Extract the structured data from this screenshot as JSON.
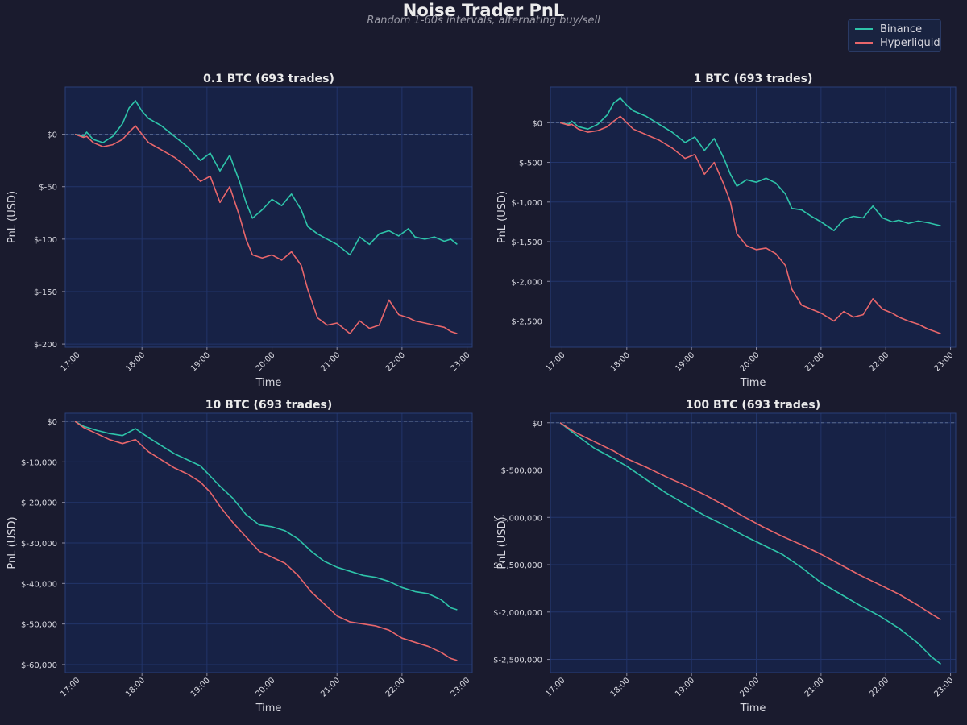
{
  "figure": {
    "title": "Noise Trader PnL",
    "subtitle": "Random 1-60s intervals, alternating buy/sell"
  },
  "colors": {
    "binance": "#2ec4a9",
    "hyperliquid": "#e8666b",
    "plot_bg": "#172246",
    "page_bg": "#1a1b2e",
    "grid": "#22346a",
    "zero_line": "#5a6a8e"
  },
  "legend": {
    "items": [
      {
        "name": "Binance",
        "color": "#2ec4a9"
      },
      {
        "name": "Hyperliquid",
        "color": "#e8666b"
      }
    ]
  },
  "chart_data": [
    {
      "type": "line",
      "title": "0.1 BTC  (693 trades)",
      "xlabel": "Time",
      "ylabel": "PnL (USD)",
      "xlim": [
        16.82,
        23.08
      ],
      "ylim": [
        -203,
        45
      ],
      "xticks": [
        17,
        18,
        19,
        20,
        21,
        22,
        23
      ],
      "xtick_labels": [
        "17:00",
        "18:00",
        "19:00",
        "20:00",
        "21:00",
        "22:00",
        "23:00"
      ],
      "yticks": [
        0,
        -50,
        -100,
        -150,
        -200
      ],
      "ytick_labels": [
        "$0",
        "$-50",
        "$-100",
        "$-150",
        "$-200"
      ],
      "zero_line": true,
      "series": [
        {
          "name": "Binance",
          "x": [
            16.97,
            17.1,
            17.15,
            17.25,
            17.4,
            17.55,
            17.7,
            17.8,
            17.9,
            18.0,
            18.1,
            18.3,
            18.5,
            18.7,
            18.9,
            19.05,
            19.2,
            19.35,
            19.5,
            19.6,
            19.7,
            19.85,
            20.0,
            20.15,
            20.3,
            20.45,
            20.55,
            20.7,
            20.85,
            21.0,
            21.2,
            21.35,
            21.5,
            21.65,
            21.8,
            21.95,
            22.1,
            22.2,
            22.35,
            22.5,
            22.65,
            22.75,
            22.85
          ],
          "y": [
            0,
            -2,
            2,
            -5,
            -8,
            -2,
            10,
            25,
            32,
            22,
            15,
            8,
            -2,
            -12,
            -25,
            -18,
            -35,
            -20,
            -45,
            -65,
            -80,
            -72,
            -62,
            -68,
            -57,
            -72,
            -88,
            -95,
            -100,
            -105,
            -115,
            -98,
            -105,
            -95,
            -92,
            -97,
            -90,
            -98,
            -100,
            -98,
            -102,
            -100,
            -105
          ]
        },
        {
          "name": "Hyperliquid",
          "x": [
            16.97,
            17.1,
            17.15,
            17.25,
            17.4,
            17.55,
            17.7,
            17.8,
            17.9,
            18.0,
            18.1,
            18.3,
            18.5,
            18.7,
            18.9,
            19.05,
            19.2,
            19.35,
            19.5,
            19.6,
            19.7,
            19.85,
            20.0,
            20.15,
            20.3,
            20.45,
            20.55,
            20.7,
            20.85,
            21.0,
            21.2,
            21.35,
            21.5,
            21.65,
            21.8,
            21.95,
            22.1,
            22.2,
            22.35,
            22.5,
            22.65,
            22.75,
            22.85
          ],
          "y": [
            0,
            -3,
            -2,
            -8,
            -12,
            -10,
            -5,
            2,
            8,
            0,
            -8,
            -15,
            -22,
            -32,
            -45,
            -40,
            -65,
            -50,
            -78,
            -100,
            -115,
            -118,
            -115,
            -120,
            -112,
            -125,
            -148,
            -175,
            -182,
            -180,
            -190,
            -178,
            -185,
            -182,
            -158,
            -172,
            -175,
            -178,
            -180,
            -182,
            -184,
            -188,
            -190
          ]
        }
      ]
    },
    {
      "type": "line",
      "title": "1 BTC  (693 trades)",
      "xlabel": "Time",
      "ylabel": "PnL (USD)",
      "xlim": [
        16.82,
        23.08
      ],
      "ylim": [
        -2830,
        450
      ],
      "xticks": [
        17,
        18,
        19,
        20,
        21,
        22,
        23
      ],
      "xtick_labels": [
        "17:00",
        "18:00",
        "19:00",
        "20:00",
        "21:00",
        "22:00",
        "23:00"
      ],
      "yticks": [
        0,
        -500,
        -1000,
        -1500,
        -2000,
        -2500
      ],
      "ytick_labels": [
        "$0",
        "$-500",
        "$-1,000",
        "$-1,500",
        "$-2,000",
        "$-2,500"
      ],
      "zero_line": true,
      "series": [
        {
          "name": "Binance",
          "x": [
            16.97,
            17.1,
            17.15,
            17.25,
            17.4,
            17.55,
            17.7,
            17.8,
            17.9,
            18.0,
            18.1,
            18.3,
            18.5,
            18.7,
            18.9,
            19.05,
            19.2,
            19.35,
            19.5,
            19.6,
            19.7,
            19.85,
            20.0,
            20.15,
            20.3,
            20.45,
            20.55,
            20.7,
            20.85,
            21.0,
            21.2,
            21.35,
            21.5,
            21.65,
            21.8,
            21.95,
            22.1,
            22.2,
            22.35,
            22.5,
            22.65,
            22.75,
            22.85
          ],
          "y": [
            0,
            -20,
            20,
            -50,
            -80,
            -20,
            100,
            250,
            310,
            220,
            150,
            80,
            -20,
            -120,
            -250,
            -180,
            -350,
            -200,
            -450,
            -650,
            -800,
            -720,
            -750,
            -700,
            -760,
            -900,
            -1080,
            -1100,
            -1180,
            -1250,
            -1360,
            -1220,
            -1180,
            -1200,
            -1050,
            -1200,
            -1250,
            -1230,
            -1270,
            -1240,
            -1260,
            -1280,
            -1300
          ]
        },
        {
          "name": "Hyperliquid",
          "x": [
            16.97,
            17.1,
            17.15,
            17.25,
            17.4,
            17.55,
            17.7,
            17.8,
            17.9,
            18.0,
            18.1,
            18.3,
            18.5,
            18.7,
            18.9,
            19.05,
            19.2,
            19.35,
            19.5,
            19.6,
            19.7,
            19.85,
            20.0,
            20.15,
            20.3,
            20.45,
            20.55,
            20.7,
            20.85,
            21.0,
            21.2,
            21.35,
            21.5,
            21.65,
            21.8,
            21.95,
            22.1,
            22.2,
            22.35,
            22.5,
            22.65,
            22.75,
            22.85
          ],
          "y": [
            0,
            -30,
            -20,
            -80,
            -120,
            -100,
            -50,
            20,
            80,
            0,
            -80,
            -150,
            -220,
            -320,
            -450,
            -400,
            -650,
            -500,
            -780,
            -1000,
            -1400,
            -1550,
            -1600,
            -1580,
            -1650,
            -1800,
            -2100,
            -2300,
            -2350,
            -2400,
            -2500,
            -2380,
            -2450,
            -2420,
            -2220,
            -2350,
            -2400,
            -2450,
            -2500,
            -2540,
            -2600,
            -2630,
            -2660
          ]
        }
      ]
    },
    {
      "type": "line",
      "title": "10 BTC  (693 trades)",
      "xlabel": "Time",
      "ylabel": "PnL (USD)",
      "xlim": [
        16.82,
        23.08
      ],
      "ylim": [
        -62000,
        2000
      ],
      "xticks": [
        17,
        18,
        19,
        20,
        21,
        22,
        23
      ],
      "xtick_labels": [
        "17:00",
        "18:00",
        "19:00",
        "20:00",
        "21:00",
        "22:00",
        "23:00"
      ],
      "yticks": [
        0,
        -10000,
        -20000,
        -30000,
        -40000,
        -50000,
        -60000
      ],
      "ytick_labels": [
        "$0",
        "$-10,000",
        "$-20,000",
        "$-30,000",
        "$-40,000",
        "$-50,000",
        "$-60,000"
      ],
      "zero_line": true,
      "series": [
        {
          "name": "Binance",
          "x": [
            16.97,
            17.1,
            17.3,
            17.5,
            17.7,
            17.9,
            18.1,
            18.3,
            18.5,
            18.7,
            18.9,
            19.05,
            19.2,
            19.4,
            19.6,
            19.8,
            20.0,
            20.2,
            20.4,
            20.6,
            20.8,
            21.0,
            21.2,
            21.4,
            21.6,
            21.8,
            22.0,
            22.2,
            22.4,
            22.6,
            22.75,
            22.85
          ],
          "y": [
            0,
            -1200,
            -2200,
            -3000,
            -3500,
            -1800,
            -4000,
            -6000,
            -8000,
            -9500,
            -11000,
            -13500,
            -16000,
            -19000,
            -23000,
            -25500,
            -26000,
            -27000,
            -29000,
            -32000,
            -34500,
            -36000,
            -37000,
            -38000,
            -38500,
            -39500,
            -41000,
            -42000,
            -42500,
            -44000,
            -46000,
            -46500
          ]
        },
        {
          "name": "Hyperliquid",
          "x": [
            16.97,
            17.1,
            17.3,
            17.5,
            17.7,
            17.9,
            18.1,
            18.3,
            18.5,
            18.7,
            18.9,
            19.05,
            19.2,
            19.4,
            19.6,
            19.8,
            20.0,
            20.2,
            20.4,
            20.6,
            20.8,
            21.0,
            21.2,
            21.4,
            21.6,
            21.8,
            22.0,
            22.2,
            22.4,
            22.6,
            22.75,
            22.85
          ],
          "y": [
            0,
            -1500,
            -3000,
            -4500,
            -5500,
            -4500,
            -7500,
            -9500,
            -11500,
            -13000,
            -15000,
            -17500,
            -21000,
            -25000,
            -28500,
            -32000,
            -33500,
            -35000,
            -38000,
            -42000,
            -45000,
            -48000,
            -49500,
            -50000,
            -50500,
            -51500,
            -53500,
            -54500,
            -55500,
            -57000,
            -58500,
            -59000
          ]
        }
      ]
    },
    {
      "type": "line",
      "title": "100 BTC  (693 trades)",
      "xlabel": "Time",
      "ylabel": "PnL (USD)",
      "xlim": [
        16.82,
        23.08
      ],
      "ylim": [
        -2640000,
        100000
      ],
      "xticks": [
        17,
        18,
        19,
        20,
        21,
        22,
        23
      ],
      "xtick_labels": [
        "17:00",
        "18:00",
        "19:00",
        "20:00",
        "21:00",
        "22:00",
        "23:00"
      ],
      "yticks": [
        0,
        -500000,
        -1000000,
        -1500000,
        -2000000,
        -2500000
      ],
      "ytick_labels": [
        "$0",
        "$-500,000",
        "$-1,000,000",
        "$-1,500,000",
        "$-2,000,000",
        "$-2,500,000"
      ],
      "zero_line": true,
      "series": [
        {
          "name": "Binance",
          "x": [
            16.97,
            17.2,
            17.5,
            17.8,
            18.0,
            18.3,
            18.6,
            18.9,
            19.2,
            19.5,
            19.8,
            20.1,
            20.4,
            20.7,
            21.0,
            21.3,
            21.6,
            21.9,
            22.2,
            22.5,
            22.7,
            22.85
          ],
          "y": [
            0,
            -120000,
            -270000,
            -380000,
            -460000,
            -600000,
            -740000,
            -860000,
            -980000,
            -1080000,
            -1190000,
            -1290000,
            -1390000,
            -1530000,
            -1690000,
            -1810000,
            -1930000,
            -2040000,
            -2170000,
            -2330000,
            -2470000,
            -2550000
          ]
        },
        {
          "name": "Hyperliquid",
          "x": [
            16.97,
            17.2,
            17.5,
            17.8,
            18.0,
            18.3,
            18.6,
            18.9,
            19.2,
            19.5,
            19.8,
            20.1,
            20.4,
            20.7,
            21.0,
            21.3,
            21.6,
            21.9,
            22.2,
            22.5,
            22.7,
            22.85
          ],
          "y": [
            0,
            -100000,
            -200000,
            -300000,
            -380000,
            -470000,
            -570000,
            -660000,
            -760000,
            -870000,
            -990000,
            -1100000,
            -1200000,
            -1290000,
            -1390000,
            -1500000,
            -1610000,
            -1710000,
            -1810000,
            -1930000,
            -2020000,
            -2080000
          ]
        }
      ]
    }
  ]
}
